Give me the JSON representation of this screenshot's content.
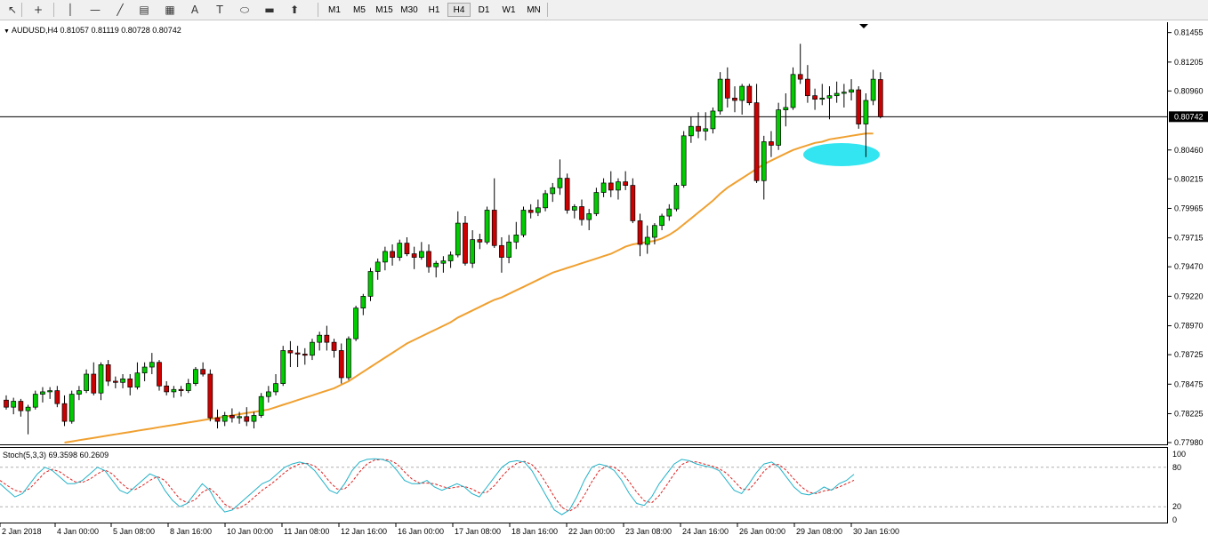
{
  "toolbar": {
    "tools": [
      {
        "name": "cursor-icon",
        "glyph": "↖"
      },
      {
        "name": "crosshair-icon",
        "glyph": "+"
      },
      {
        "name": "vertical-line-icon",
        "glyph": "│"
      },
      {
        "name": "horizontal-line-icon",
        "glyph": "—"
      },
      {
        "name": "trendline-icon",
        "glyph": "╱"
      },
      {
        "name": "fibonacci-fan-icon",
        "glyph": "▤"
      },
      {
        "name": "fibonacci-retracement-icon",
        "glyph": "▦"
      },
      {
        "name": "text-icon",
        "glyph": "A"
      },
      {
        "name": "text-label-icon",
        "glyph": "T"
      },
      {
        "name": "ellipse-icon",
        "glyph": "⬭"
      },
      {
        "name": "rectangle-icon",
        "glyph": "▬"
      },
      {
        "name": "arrows-icon",
        "glyph": "⬆"
      }
    ],
    "timeframes": [
      "M1",
      "M5",
      "M15",
      "M30",
      "H1",
      "H4",
      "D1",
      "W1",
      "MN"
    ],
    "active_timeframe": "H4"
  },
  "chart": {
    "symbol_header": "AUDUSD,H4  0.81057 0.81119 0.80728 0.80742",
    "current_price_label": "0.80742",
    "stoch_header": "Stoch(5,3,3) 69.3598 60.2609"
  },
  "chart_data": {
    "type": "candlestick",
    "symbol": "AUDUSD",
    "timeframe": "H4",
    "last": {
      "open": 0.81057,
      "high": 0.81119,
      "low": 0.80728,
      "close": 0.80742
    },
    "price_axis_ticks": [
      "0.81455",
      "0.81205",
      "0.80960",
      "0.80460",
      "0.80215",
      "0.79965",
      "0.79715",
      "0.79470",
      "0.79220",
      "0.78970",
      "0.78725",
      "0.78475",
      "0.78225",
      "0.77980"
    ],
    "ylim": [
      0.7798,
      0.8146
    ],
    "time_axis_labels": [
      "2 Jan 2018",
      "4 Jan 00:00",
      "5 Jan 08:00",
      "8 Jan 16:00",
      "10 Jan 00:00",
      "11 Jan 08:00",
      "12 Jan 16:00",
      "16 Jan 00:00",
      "17 Jan 08:00",
      "18 Jan 16:00",
      "22 Jan 00:00",
      "23 Jan 08:00",
      "24 Jan 16:00",
      "26 Jan 00:00",
      "29 Jan 08:00",
      "30 Jan 16:00"
    ],
    "up_color": "#00cc00",
    "down_color": "#cc0000",
    "ma_color": "#f0a030",
    "highlight_color": "#33e5f0",
    "candles": [
      [
        0.7834,
        0.7838,
        0.7826,
        0.7828
      ],
      [
        0.7828,
        0.7836,
        0.7822,
        0.7833
      ],
      [
        0.7833,
        0.7835,
        0.782,
        0.7825
      ],
      [
        0.7825,
        0.783,
        0.7805,
        0.7828
      ],
      [
        0.7828,
        0.7842,
        0.7826,
        0.7839
      ],
      [
        0.7839,
        0.7845,
        0.7832,
        0.7841
      ],
      [
        0.7841,
        0.7845,
        0.7835,
        0.7842
      ],
      [
        0.7842,
        0.7846,
        0.7828,
        0.7831
      ],
      [
        0.7831,
        0.7838,
        0.7812,
        0.7816
      ],
      [
        0.7816,
        0.7842,
        0.7814,
        0.7839
      ],
      [
        0.7839,
        0.7846,
        0.7834,
        0.7842
      ],
      [
        0.7842,
        0.786,
        0.784,
        0.7856
      ],
      [
        0.7856,
        0.7866,
        0.7838,
        0.784
      ],
      [
        0.784,
        0.7866,
        0.7834,
        0.7864
      ],
      [
        0.7864,
        0.7868,
        0.7846,
        0.785
      ],
      [
        0.785,
        0.7854,
        0.7844,
        0.7849
      ],
      [
        0.7849,
        0.7856,
        0.7844,
        0.7852
      ],
      [
        0.7852,
        0.7856,
        0.7838,
        0.7845
      ],
      [
        0.7845,
        0.7866,
        0.7843,
        0.7857
      ],
      [
        0.7857,
        0.7866,
        0.785,
        0.7862
      ],
      [
        0.7862,
        0.7874,
        0.7856,
        0.7866
      ],
      [
        0.7866,
        0.7868,
        0.7842,
        0.7846
      ],
      [
        0.7846,
        0.785,
        0.7838,
        0.7841
      ],
      [
        0.7841,
        0.7846,
        0.7836,
        0.7843
      ],
      [
        0.7843,
        0.7846,
        0.7837,
        0.7842
      ],
      [
        0.7842,
        0.7852,
        0.784,
        0.7848
      ],
      [
        0.7848,
        0.7862,
        0.7846,
        0.786
      ],
      [
        0.786,
        0.7866,
        0.7854,
        0.7856
      ],
      [
        0.7856,
        0.786,
        0.7816,
        0.7819
      ],
      [
        0.7819,
        0.7826,
        0.781,
        0.7816
      ],
      [
        0.7816,
        0.7824,
        0.7812,
        0.7821
      ],
      [
        0.7821,
        0.7827,
        0.7815,
        0.7819
      ],
      [
        0.7819,
        0.7824,
        0.7814,
        0.782
      ],
      [
        0.782,
        0.7828,
        0.7812,
        0.7816
      ],
      [
        0.7816,
        0.7824,
        0.781,
        0.7821
      ],
      [
        0.7821,
        0.784,
        0.7819,
        0.7837
      ],
      [
        0.7837,
        0.7846,
        0.7832,
        0.7841
      ],
      [
        0.7841,
        0.7856,
        0.7838,
        0.7848
      ],
      [
        0.7848,
        0.788,
        0.7846,
        0.7876
      ],
      [
        0.7876,
        0.7884,
        0.7862,
        0.7874
      ],
      [
        0.7874,
        0.788,
        0.7862,
        0.7873
      ],
      [
        0.7873,
        0.7878,
        0.7864,
        0.7872
      ],
      [
        0.7872,
        0.7886,
        0.7868,
        0.7883
      ],
      [
        0.7883,
        0.7892,
        0.7876,
        0.7889
      ],
      [
        0.7889,
        0.7897,
        0.7876,
        0.7883
      ],
      [
        0.7883,
        0.7886,
        0.787,
        0.7876
      ],
      [
        0.7876,
        0.7882,
        0.7848,
        0.7853
      ],
      [
        0.7853,
        0.7888,
        0.7851,
        0.7886
      ],
      [
        0.7886,
        0.7914,
        0.7884,
        0.7912
      ],
      [
        0.7912,
        0.7924,
        0.7906,
        0.7922
      ],
      [
        0.7922,
        0.7946,
        0.7918,
        0.7943
      ],
      [
        0.7943,
        0.7954,
        0.7936,
        0.7951
      ],
      [
        0.7951,
        0.7964,
        0.7944,
        0.796
      ],
      [
        0.796,
        0.7966,
        0.7948,
        0.7955
      ],
      [
        0.7955,
        0.797,
        0.7952,
        0.7967
      ],
      [
        0.7967,
        0.7972,
        0.7956,
        0.7958
      ],
      [
        0.7958,
        0.7964,
        0.7945,
        0.7955
      ],
      [
        0.7955,
        0.7968,
        0.7953,
        0.796
      ],
      [
        0.796,
        0.7966,
        0.7942,
        0.7947
      ],
      [
        0.7947,
        0.7952,
        0.7938,
        0.795
      ],
      [
        0.795,
        0.7956,
        0.7942,
        0.7952
      ],
      [
        0.7952,
        0.796,
        0.7946,
        0.7957
      ],
      [
        0.7957,
        0.7994,
        0.7955,
        0.7984
      ],
      [
        0.7984,
        0.799,
        0.7948,
        0.795
      ],
      [
        0.795,
        0.7978,
        0.7946,
        0.797
      ],
      [
        0.797,
        0.7975,
        0.7962,
        0.7968
      ],
      [
        0.7968,
        0.7998,
        0.7966,
        0.7995
      ],
      [
        0.7995,
        0.8022,
        0.7963,
        0.7965
      ],
      [
        0.7965,
        0.7972,
        0.7942,
        0.7955
      ],
      [
        0.7955,
        0.7974,
        0.795,
        0.7968
      ],
      [
        0.7968,
        0.7985,
        0.7962,
        0.7974
      ],
      [
        0.7974,
        0.7998,
        0.7972,
        0.7995
      ],
      [
        0.7995,
        0.8,
        0.7988,
        0.7993
      ],
      [
        0.7993,
        0.8004,
        0.799,
        0.7997
      ],
      [
        0.7997,
        0.8012,
        0.7994,
        0.8009
      ],
      [
        0.8009,
        0.8018,
        0.8002,
        0.8014
      ],
      [
        0.8014,
        0.8038,
        0.8008,
        0.8022
      ],
      [
        0.8022,
        0.8026,
        0.7992,
        0.7995
      ],
      [
        0.7995,
        0.8,
        0.7988,
        0.7998
      ],
      [
        0.7998,
        0.8004,
        0.7982,
        0.7987
      ],
      [
        0.7987,
        0.7996,
        0.7978,
        0.7992
      ],
      [
        0.7992,
        0.8014,
        0.799,
        0.801
      ],
      [
        0.801,
        0.8022,
        0.8006,
        0.8018
      ],
      [
        0.8018,
        0.8028,
        0.8006,
        0.8012
      ],
      [
        0.8012,
        0.8022,
        0.8004,
        0.8019
      ],
      [
        0.8019,
        0.8028,
        0.8012,
        0.8016
      ],
      [
        0.8016,
        0.8022,
        0.7984,
        0.7986
      ],
      [
        0.7986,
        0.7992,
        0.7956,
        0.7966
      ],
      [
        0.7966,
        0.7982,
        0.7958,
        0.7972
      ],
      [
        0.7972,
        0.7984,
        0.7966,
        0.7982
      ],
      [
        0.7982,
        0.7992,
        0.7978,
        0.799
      ],
      [
        0.799,
        0.8,
        0.7986,
        0.7996
      ],
      [
        0.7996,
        0.8018,
        0.7994,
        0.8016
      ],
      [
        0.8016,
        0.8062,
        0.8014,
        0.8058
      ],
      [
        0.8058,
        0.8074,
        0.8052,
        0.8066
      ],
      [
        0.8066,
        0.8078,
        0.8056,
        0.8062
      ],
      [
        0.8062,
        0.8078,
        0.8054,
        0.8064
      ],
      [
        0.8064,
        0.8082,
        0.806,
        0.8079
      ],
      [
        0.8079,
        0.8112,
        0.8076,
        0.8106
      ],
      [
        0.8106,
        0.8116,
        0.8082,
        0.809
      ],
      [
        0.809,
        0.81,
        0.8078,
        0.8088
      ],
      [
        0.8088,
        0.8102,
        0.8076,
        0.81
      ],
      [
        0.81,
        0.8102,
        0.8084,
        0.8086
      ],
      [
        0.8086,
        0.8102,
        0.8018,
        0.802
      ],
      [
        0.802,
        0.8058,
        0.8004,
        0.8053
      ],
      [
        0.8053,
        0.8062,
        0.804,
        0.805
      ],
      [
        0.805,
        0.8086,
        0.8046,
        0.808
      ],
      [
        0.808,
        0.8094,
        0.8066,
        0.8082
      ],
      [
        0.8082,
        0.8116,
        0.808,
        0.811
      ],
      [
        0.811,
        0.8136,
        0.8102,
        0.8106
      ],
      [
        0.8106,
        0.8118,
        0.8086,
        0.8092
      ],
      [
        0.8092,
        0.8098,
        0.808,
        0.8089
      ],
      [
        0.8089,
        0.8102,
        0.8084,
        0.809
      ],
      [
        0.809,
        0.81,
        0.8072,
        0.8092
      ],
      [
        0.8092,
        0.8104,
        0.8086,
        0.8094
      ],
      [
        0.8094,
        0.8102,
        0.8082,
        0.8095
      ],
      [
        0.8095,
        0.8106,
        0.8088,
        0.8097
      ],
      [
        0.8097,
        0.81,
        0.8064,
        0.8068
      ],
      [
        0.8068,
        0.8094,
        0.804,
        0.8088
      ],
      [
        0.8088,
        0.8114,
        0.8084,
        0.8106
      ],
      [
        0.81057,
        0.81119,
        0.80728,
        0.80742
      ]
    ],
    "ma": [
      0.779,
      0.7791,
      0.7792,
      0.7793,
      0.7794,
      0.7795,
      0.7796,
      0.7797,
      0.7798,
      0.7799,
      0.78,
      0.7801,
      0.7802,
      0.7803,
      0.7804,
      0.7805,
      0.7806,
      0.7807,
      0.7808,
      0.7809,
      0.781,
      0.7811,
      0.7812,
      0.7813,
      0.7814,
      0.7815,
      0.7816,
      0.7817,
      0.7818,
      0.7819,
      0.782,
      0.7821,
      0.7822,
      0.7823,
      0.7824,
      0.7825,
      0.7826,
      0.7828,
      0.783,
      0.7832,
      0.7834,
      0.7836,
      0.7838,
      0.784,
      0.7842,
      0.7844,
      0.7847,
      0.785,
      0.7854,
      0.7858,
      0.7862,
      0.7866,
      0.787,
      0.7874,
      0.7878,
      0.7882,
      0.7885,
      0.7888,
      0.7891,
      0.7894,
      0.7897,
      0.79,
      0.7904,
      0.7907,
      0.791,
      0.7913,
      0.7916,
      0.7919,
      0.7921,
      0.7924,
      0.7927,
      0.793,
      0.7933,
      0.7936,
      0.7939,
      0.7942,
      0.7944,
      0.7946,
      0.7948,
      0.795,
      0.7952,
      0.7954,
      0.7956,
      0.7958,
      0.7961,
      0.7964,
      0.7966,
      0.7967,
      0.7968,
      0.7969,
      0.7971,
      0.7974,
      0.7978,
      0.7983,
      0.7988,
      0.7993,
      0.7998,
      0.8003,
      0.8009,
      0.8014,
      0.8018,
      0.8022,
      0.8026,
      0.803,
      0.8034,
      0.8037,
      0.804,
      0.8043,
      0.8046,
      0.8048,
      0.805,
      0.8052,
      0.8053,
      0.8055,
      0.8056,
      0.8057,
      0.8058,
      0.8059,
      0.806,
      0.806
    ],
    "stochastic": {
      "params": "5,3,3",
      "main_value": 69.3598,
      "signal_value": 60.2609,
      "levels": [
        20,
        80
      ],
      "axis_labels": [
        "100",
        "80",
        "20",
        "0"
      ],
      "main_color": "#20b2c8",
      "signal_color": "#e02020",
      "main": [
        55,
        45,
        35,
        40,
        55,
        70,
        80,
        75,
        65,
        55,
        55,
        60,
        70,
        80,
        75,
        60,
        45,
        40,
        50,
        60,
        70,
        65,
        45,
        30,
        20,
        25,
        40,
        55,
        45,
        25,
        12,
        15,
        25,
        35,
        45,
        55,
        60,
        70,
        80,
        85,
        88,
        85,
        75,
        60,
        45,
        40,
        55,
        75,
        88,
        92,
        93,
        92,
        88,
        75,
        60,
        55,
        55,
        60,
        50,
        45,
        50,
        55,
        50,
        40,
        35,
        50,
        65,
        80,
        88,
        90,
        88,
        75,
        55,
        35,
        15,
        8,
        15,
        35,
        60,
        80,
        85,
        82,
        75,
        60,
        40,
        25,
        22,
        35,
        55,
        70,
        85,
        92,
        90,
        85,
        82,
        80,
        75,
        60,
        45,
        40,
        55,
        72,
        85,
        88,
        80,
        65,
        50,
        40,
        38,
        42,
        50,
        45,
        55,
        60,
        69.36
      ],
      "signal": [
        60,
        52,
        45,
        42,
        48,
        60,
        72,
        77,
        73,
        65,
        58,
        57,
        62,
        70,
        76,
        70,
        58,
        48,
        46,
        52,
        60,
        66,
        60,
        46,
        32,
        26,
        30,
        42,
        48,
        38,
        24,
        17,
        18,
        25,
        35,
        45,
        53,
        62,
        72,
        80,
        85,
        86,
        82,
        72,
        58,
        47,
        47,
        58,
        73,
        85,
        91,
        92,
        91,
        85,
        73,
        62,
        56,
        56,
        55,
        51,
        48,
        50,
        51,
        47,
        41,
        42,
        52,
        66,
        78,
        86,
        89,
        84,
        72,
        54,
        35,
        19,
        13,
        20,
        37,
        58,
        75,
        82,
        80,
        72,
        58,
        42,
        29,
        26,
        37,
        53,
        70,
        84,
        89,
        88,
        85,
        82,
        78,
        71,
        59,
        47,
        46,
        59,
        74,
        84,
        84,
        75,
        62,
        50,
        42,
        40,
        44,
        46,
        50,
        55,
        60.26
      ]
    },
    "title": "",
    "xlabel": "",
    "ylabel": "",
    "grid": false
  }
}
